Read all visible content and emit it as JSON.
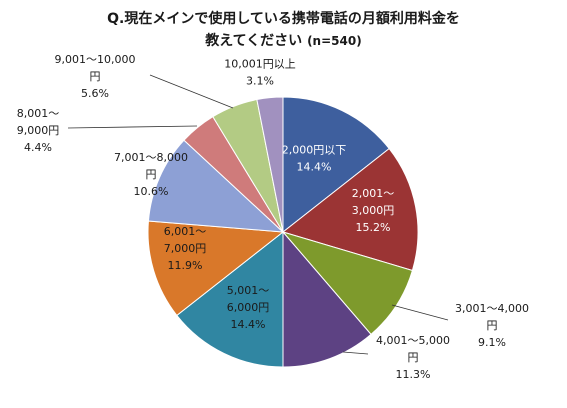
{
  "chart_data": {
    "type": "pie",
    "title_line1": "Q.現在メインで使用している携帯電話の月額利用料金を",
    "title_line2": "教えてください",
    "subtitle": "(n=540)",
    "start_angle_deg": 0,
    "direction": "clockwise",
    "slices": [
      {
        "label": "2,000円以下",
        "value": 14.4,
        "value_label": "14.4%",
        "color": "#3E5F9E",
        "label_color": "#ffffff"
      },
      {
        "label": "2,001～3,000円",
        "value": 15.2,
        "value_label": "15.2%",
        "color": "#9B3434",
        "label_color": "#ffffff"
      },
      {
        "label": "3,001～4,000円",
        "value": 9.1,
        "value_label": "9.1%",
        "color": "#7E9A2C",
        "label_color": "#1a1a1a"
      },
      {
        "label": "4,001～5,000円",
        "value": 11.3,
        "value_label": "11.3%",
        "color": "#5D4283",
        "label_color": "#1a1a1a"
      },
      {
        "label": "5,001～6,000円",
        "value": 14.4,
        "value_label": "14.4%",
        "color": "#3086A2",
        "label_color": "#1a1a1a"
      },
      {
        "label": "6,001～7,000円",
        "value": 11.9,
        "value_label": "11.9%",
        "color": "#D9782A",
        "label_color": "#1a1a1a"
      },
      {
        "label": "7,001～8,000円",
        "value": 10.6,
        "value_label": "10.6%",
        "color": "#8DA0D5",
        "label_color": "#1a1a1a"
      },
      {
        "label": "8,001～9,000円",
        "value": 4.4,
        "value_label": "4.4%",
        "color": "#CF7B7B",
        "label_color": "#1a1a1a"
      },
      {
        "label": "9,001～10,000円",
        "value": 5.6,
        "value_label": "5.6%",
        "color": "#B3CB84",
        "label_color": "#1a1a1a"
      },
      {
        "label": "10,001円以上",
        "value": 3.1,
        "value_label": "3.1%",
        "color": "#A191BF",
        "label_color": "#1a1a1a"
      }
    ],
    "label_lines": [
      [
        "2,000円以下"
      ],
      [
        "2,001～",
        "3,000円"
      ],
      [
        "3,001～4,000",
        "円"
      ],
      [
        "4,001～5,000",
        "円"
      ],
      [
        "5,001～",
        "6,000円"
      ],
      [
        "6,001～",
        "7,000円"
      ],
      [
        "7,001～8,000",
        "円"
      ],
      [
        "8,001～",
        "9,000円"
      ],
      [
        "9,001～10,000",
        "円"
      ],
      [
        "10,001円以上"
      ]
    ]
  }
}
